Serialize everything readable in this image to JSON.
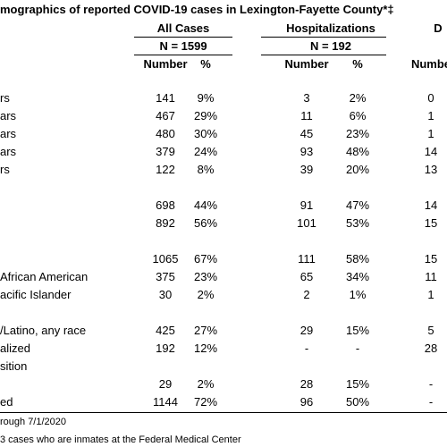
{
  "title": "mographics of reported COVID-19 cases in Lexington-Fayette County*‡",
  "groups": [
    "All Cases",
    "Hospitalizations",
    "D"
  ],
  "group_n": [
    "N = 1599",
    "N = 192"
  ],
  "subheaders": [
    "Number",
    "%",
    "Number",
    "%",
    "Numbe"
  ],
  "rows": [
    [
      "rs",
      "141",
      "9%",
      "3",
      "2%",
      "0"
    ],
    [
      "ars",
      "467",
      "29%",
      "11",
      "6%",
      "1"
    ],
    [
      "ars",
      "480",
      "30%",
      "45",
      "23%",
      "1"
    ],
    [
      "ars",
      "379",
      "24%",
      "93",
      "48%",
      "14"
    ],
    [
      "rs",
      "122",
      "8%",
      "39",
      "20%",
      "13"
    ],
    [
      null,
      "698",
      "44%",
      "91",
      "47%",
      "14"
    ],
    [
      null,
      "892",
      "56%",
      "101",
      "53%",
      "15"
    ],
    [
      null,
      "1065",
      "67%",
      "111",
      "58%",
      "15"
    ],
    [
      "African American",
      "375",
      "23%",
      "65",
      "34%",
      "11"
    ],
    [
      "acific Islander",
      "30",
      "2%",
      "2",
      "1%",
      "1"
    ],
    [
      "/Latino, any race",
      "425",
      "27%",
      "29",
      "15%",
      "5"
    ],
    [
      "alized",
      "192",
      "12%",
      "-",
      "-",
      "28"
    ],
    [
      "sition",
      null,
      null,
      null,
      null,
      null
    ],
    [
      null,
      "29",
      "2%",
      "28",
      "15%",
      "-"
    ],
    [
      "ed",
      "1144",
      "72%",
      "96",
      "50%",
      "-"
    ]
  ],
  "footnotes": [
    "rough 7/1/2020",
    "3 cases who are inmates at the Federal Medical Center"
  ]
}
